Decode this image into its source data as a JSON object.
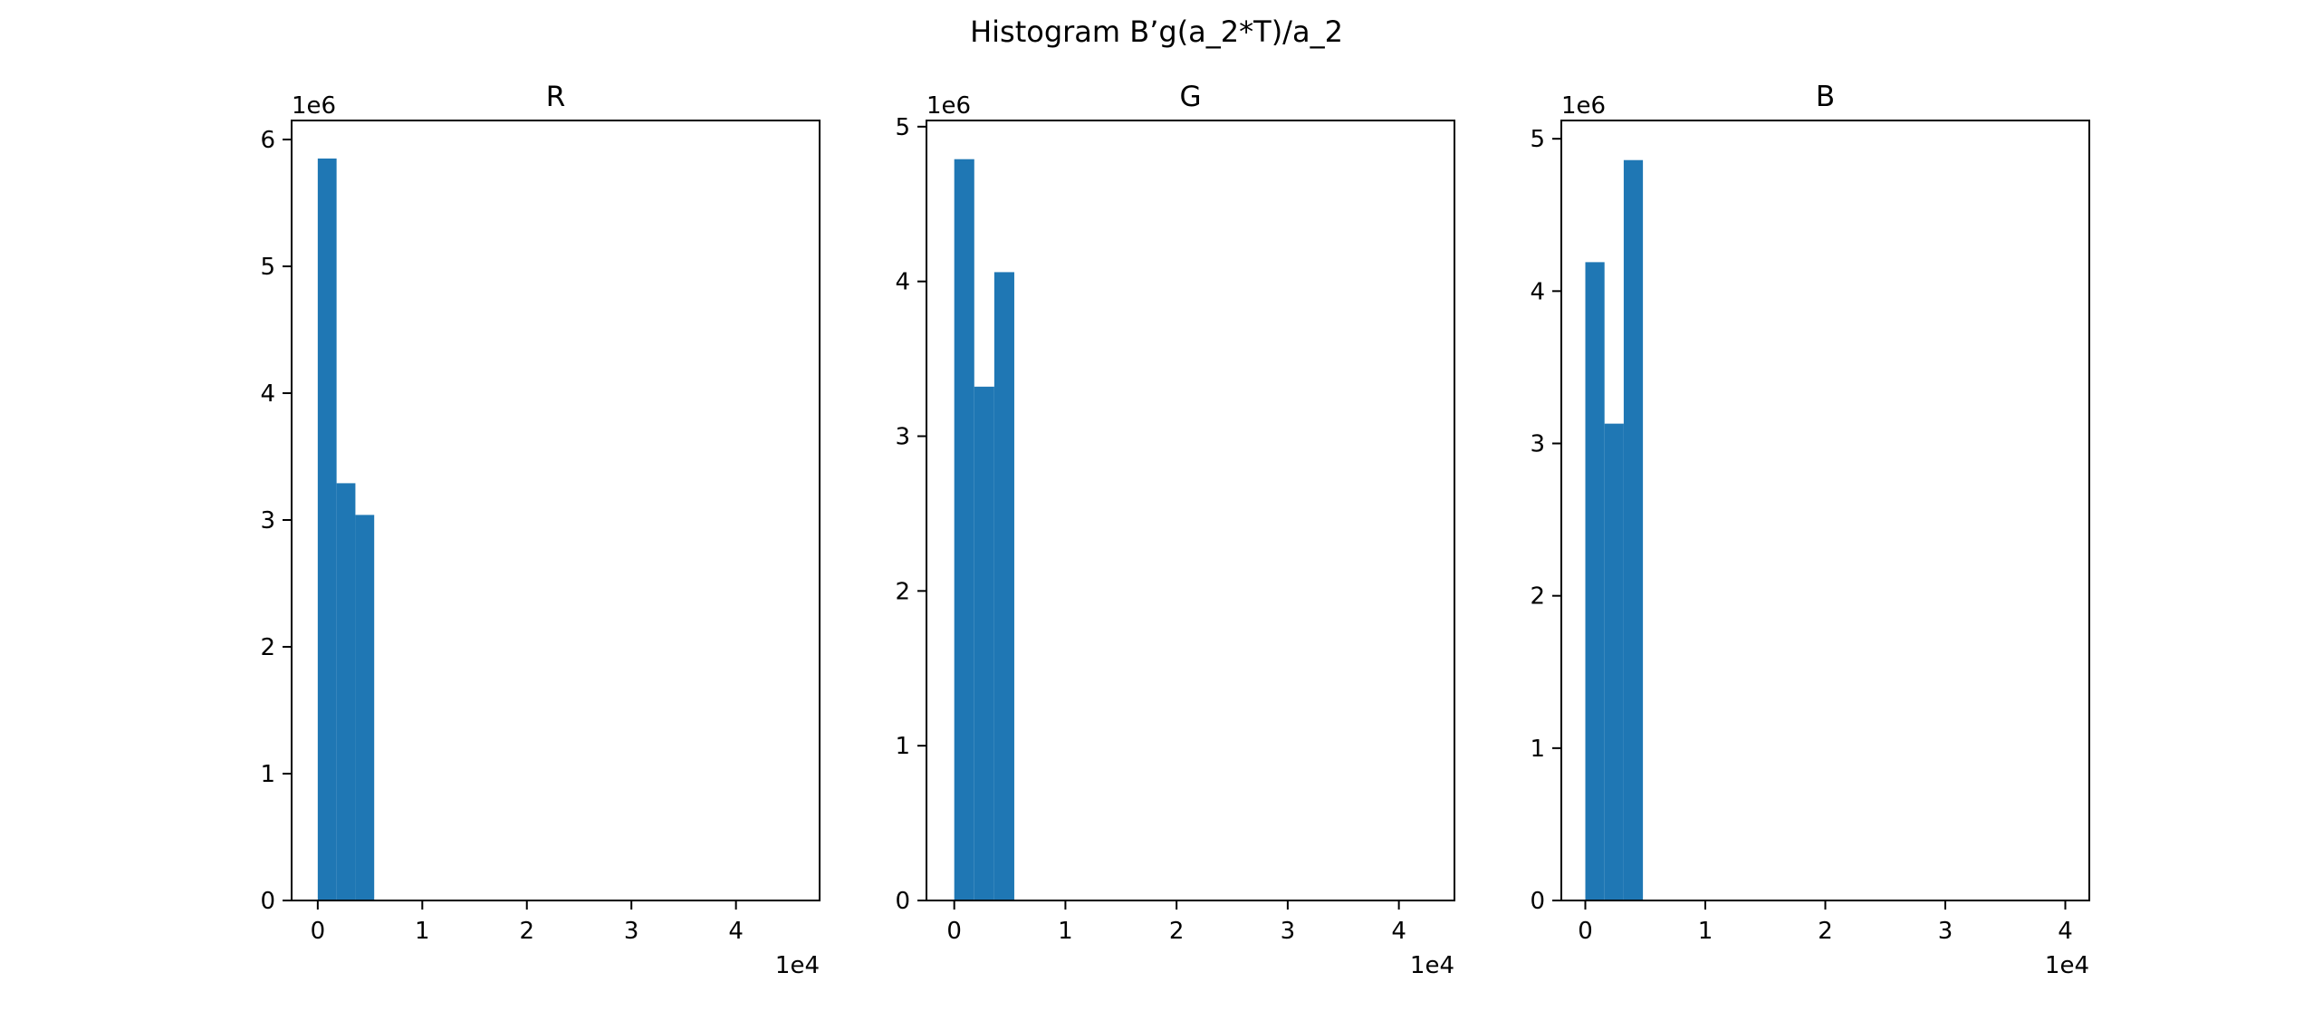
{
  "figure_title": "Histogram B’g(a_2*T)/a_2",
  "colors": {
    "bar": "#1f77b4",
    "axis": "#000000"
  },
  "chart_data": [
    {
      "type": "bar",
      "title": "R",
      "x_offset_label": "1e4",
      "y_offset_label": "1e6",
      "xlim": [
        -0.25,
        4.8
      ],
      "ylim": [
        0,
        6.15
      ],
      "xticks": [
        0,
        1,
        2,
        3,
        4
      ],
      "yticks": [
        0,
        1,
        2,
        3,
        4,
        5,
        6
      ],
      "grid": false,
      "bins": [
        {
          "x0": 0.0,
          "x1": 0.18,
          "value": 5.85
        },
        {
          "x0": 0.18,
          "x1": 0.36,
          "value": 3.29
        },
        {
          "x0": 0.36,
          "x1": 0.54,
          "value": 3.04
        }
      ]
    },
    {
      "type": "bar",
      "title": "G",
      "x_offset_label": "1e4",
      "y_offset_label": "1e6",
      "xlim": [
        -0.25,
        4.5
      ],
      "ylim": [
        0,
        5.04
      ],
      "xticks": [
        0,
        1,
        2,
        3,
        4
      ],
      "yticks": [
        0,
        1,
        2,
        3,
        4,
        5
      ],
      "grid": false,
      "bins": [
        {
          "x0": 0.0,
          "x1": 0.18,
          "value": 4.79
        },
        {
          "x0": 0.18,
          "x1": 0.36,
          "value": 3.32
        },
        {
          "x0": 0.36,
          "x1": 0.54,
          "value": 4.06
        }
      ]
    },
    {
      "type": "bar",
      "title": "B",
      "x_offset_label": "1e4",
      "y_offset_label": "1e6",
      "xlim": [
        -0.2,
        4.2
      ],
      "ylim": [
        0,
        5.12
      ],
      "xticks": [
        0,
        1,
        2,
        3,
        4
      ],
      "yticks": [
        0,
        1,
        2,
        3,
        4,
        5
      ],
      "grid": false,
      "bins": [
        {
          "x0": 0.0,
          "x1": 0.16,
          "value": 4.19
        },
        {
          "x0": 0.16,
          "x1": 0.32,
          "value": 3.13
        },
        {
          "x0": 0.32,
          "x1": 0.48,
          "value": 4.86
        }
      ]
    }
  ]
}
